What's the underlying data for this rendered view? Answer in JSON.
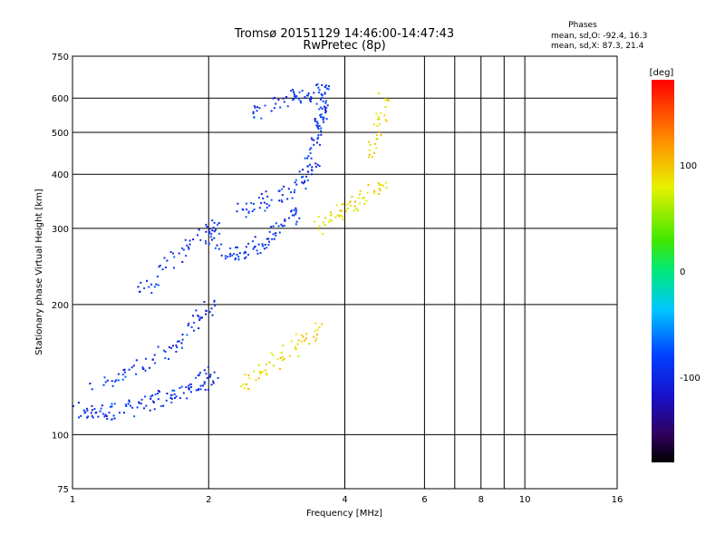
{
  "chart_data": {
    "type": "scatter",
    "title": "Tromsø 20151129 14:46:00-14:47:43",
    "subtitle": "RwPretec (8p)",
    "xlabel": "Frequency [MHz]",
    "ylabel": "Stationary phase Virtual Height [km]",
    "x_scale": "log",
    "y_scale": "log",
    "xlim": [
      1,
      16
    ],
    "ylim": [
      75,
      750
    ],
    "x_ticks": [
      1,
      2,
      4,
      6,
      8,
      10,
      16
    ],
    "x_minor_gridlines": [
      7,
      9
    ],
    "y_ticks": [
      75,
      100,
      200,
      300,
      400,
      500,
      600,
      750
    ],
    "grid": true,
    "phases_box": {
      "heading": "Phases",
      "line_o": "mean, sd,O: -92.4, 16.3",
      "line_x": "mean, sd,X:  87.3, 21.4"
    },
    "colorbar": {
      "label": "[deg]",
      "range": [
        -180,
        180
      ],
      "ticks": [
        100,
        0,
        -100
      ]
    },
    "series": [
      {
        "mode": "O",
        "phase_deg": -92,
        "traces": [
          {
            "x": [
              1.0,
              1.1,
              1.2,
              1.35,
              1.5,
              1.65,
              1.8,
              1.95,
              2.05
            ],
            "y": [
              117,
              111,
              113,
              116,
              120,
              124,
              128,
              133,
              140
            ]
          },
          {
            "x": [
              1.1,
              1.3,
              1.5,
              1.7,
              1.9,
              2.05
            ],
            "y": [
              128,
              140,
              150,
              165,
              185,
              205
            ]
          },
          {
            "x": [
              1.4,
              1.6,
              1.8,
              2.0,
              2.1
            ],
            "y": [
              215,
              245,
              270,
              295,
              310
            ]
          },
          {
            "x": [
              2.1,
              2.3,
              2.5,
              2.7,
              2.9,
              3.1
            ],
            "y": [
              270,
              262,
              270,
              285,
              305,
              325
            ]
          },
          {
            "x": [
              2.3,
              2.6,
              2.9,
              3.2,
              3.5
            ],
            "y": [
              330,
              345,
              360,
              385,
              420
            ]
          },
          {
            "x": [
              2.5,
              2.8,
              3.1,
              3.4,
              3.6
            ],
            "y": [
              560,
              585,
              605,
              620,
              640
            ]
          },
          {
            "x": [
              3.3,
              3.4,
              3.5,
              3.55,
              3.6
            ],
            "y": [
              420,
              470,
              520,
              570,
              620
            ]
          }
        ]
      },
      {
        "mode": "X",
        "phase_deg": 87,
        "traces": [
          {
            "x": [
              2.35,
              2.6,
              2.9,
              3.2,
              3.5
            ],
            "y": [
              130,
              140,
              152,
              165,
              178
            ]
          },
          {
            "x": [
              3.5,
              3.8,
              4.1,
              4.4,
              4.8
            ],
            "y": [
              305,
              320,
              340,
              355,
              380
            ]
          },
          {
            "x": [
              4.5,
              4.7,
              4.9
            ],
            "y": [
              440,
              520,
              600
            ]
          }
        ]
      }
    ]
  }
}
